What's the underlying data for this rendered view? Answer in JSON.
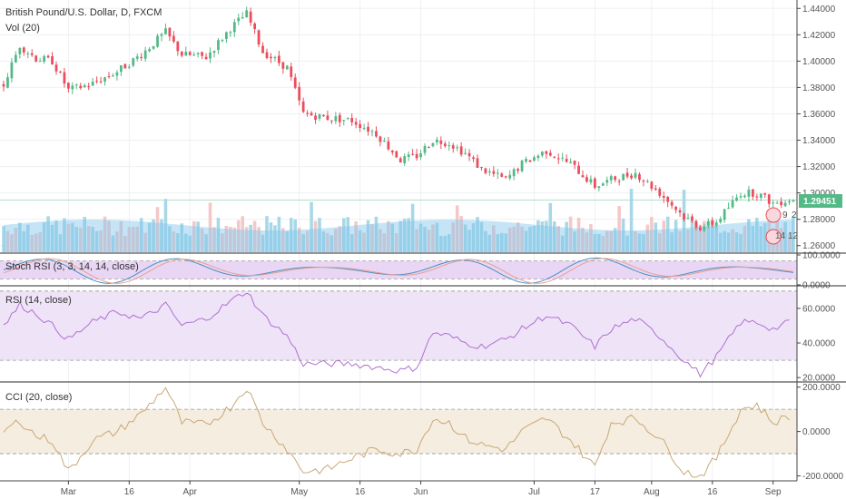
{
  "title": "British Pound/U.S. Dollar, D, FXCM",
  "volume_label": "Vol (20)",
  "current_price_label": "1.29451",
  "event_badges": [
    "9",
    "2",
    "14",
    "12"
  ],
  "colors": {
    "up": "#53b987",
    "down": "#eb4d5c",
    "volume_up": "#a8d8e8",
    "volume_down": "#f4c8c8",
    "volume_ma": "#7ec6ec",
    "stoch_k": "#4a90c2",
    "stoch_d": "#e8a090",
    "rsi": "#b070d0",
    "cci": "#c9a878",
    "band_stoch": "#e8d6f4",
    "band_rsi": "#efe3f8",
    "band_cci": "#f5ede0"
  },
  "chart_data": [
    {
      "type": "candlestick",
      "title": "British Pound/U.S. Dollar, D, FXCM",
      "y_ticks": [
        "1.44000",
        "1.42000",
        "1.40000",
        "1.38000",
        "1.36000",
        "1.34000",
        "1.32000",
        "1.30000",
        "1.28000",
        "1.26000"
      ],
      "ylim": [
        1.255,
        1.445
      ],
      "x_labels": [
        {
          "label": "Mar",
          "i": 16
        },
        {
          "label": "16",
          "i": 31
        },
        {
          "label": "Apr",
          "i": 46
        },
        {
          "label": "May",
          "i": 73
        },
        {
          "label": "16",
          "i": 88
        },
        {
          "label": "Jun",
          "i": 103
        },
        {
          "label": "Jul",
          "i": 131
        },
        {
          "label": "17",
          "i": 146
        },
        {
          "label": "Aug",
          "i": 160
        },
        {
          "label": "16",
          "i": 175
        },
        {
          "label": "Sep",
          "i": 190
        }
      ],
      "n": 196,
      "keypoints": [
        [
          0,
          1.382
        ],
        [
          4,
          1.412
        ],
        [
          8,
          1.402
        ],
        [
          12,
          1.4
        ],
        [
          16,
          1.378
        ],
        [
          22,
          1.383
        ],
        [
          28,
          1.392
        ],
        [
          34,
          1.405
        ],
        [
          40,
          1.422
        ],
        [
          44,
          1.405
        ],
        [
          50,
          1.403
        ],
        [
          56,
          1.425
        ],
        [
          60,
          1.436
        ],
        [
          64,
          1.407
        ],
        [
          70,
          1.395
        ],
        [
          74,
          1.36
        ],
        [
          80,
          1.357
        ],
        [
          86,
          1.355
        ],
        [
          92,
          1.345
        ],
        [
          98,
          1.325
        ],
        [
          102,
          1.328
        ],
        [
          106,
          1.34
        ],
        [
          110,
          1.338
        ],
        [
          114,
          1.33
        ],
        [
          118,
          1.318
        ],
        [
          124,
          1.31
        ],
        [
          128,
          1.322
        ],
        [
          134,
          1.332
        ],
        [
          140,
          1.322
        ],
        [
          146,
          1.305
        ],
        [
          150,
          1.31
        ],
        [
          156,
          1.315
        ],
        [
          162,
          1.3
        ],
        [
          168,
          1.282
        ],
        [
          172,
          1.274
        ],
        [
          176,
          1.278
        ],
        [
          182,
          1.3
        ],
        [
          186,
          1.3
        ],
        [
          190,
          1.292
        ],
        [
          194,
          1.295
        ],
        [
          195,
          1.29451
        ]
      ],
      "current_price": 1.29451
    },
    {
      "type": "bar",
      "title": "Vol (20)",
      "series": "volume with moving average"
    },
    {
      "type": "line",
      "title": "Stoch RSI (3, 3, 14, 14, close)",
      "y_ticks": [
        "100.0000",
        "0.0000"
      ],
      "ylim": [
        0,
        100
      ],
      "bands": [
        20,
        80
      ]
    },
    {
      "type": "line",
      "title": "RSI (14, close)",
      "y_ticks": [
        "60.0000",
        "40.0000",
        "20.0000"
      ],
      "ylim": [
        18,
        72
      ],
      "bands": [
        30,
        70
      ],
      "keypoints": [
        [
          0,
          50
        ],
        [
          4,
          62
        ],
        [
          8,
          57
        ],
        [
          12,
          50
        ],
        [
          16,
          42
        ],
        [
          22,
          52
        ],
        [
          28,
          58
        ],
        [
          34,
          54
        ],
        [
          40,
          62
        ],
        [
          44,
          50
        ],
        [
          50,
          54
        ],
        [
          56,
          64
        ],
        [
          60,
          70
        ],
        [
          64,
          56
        ],
        [
          70,
          44
        ],
        [
          74,
          28
        ],
        [
          80,
          28
        ],
        [
          86,
          28
        ],
        [
          92,
          26
        ],
        [
          98,
          24
        ],
        [
          102,
          26
        ],
        [
          106,
          46
        ],
        [
          110,
          44
        ],
        [
          114,
          40
        ],
        [
          118,
          38
        ],
        [
          124,
          42
        ],
        [
          128,
          48
        ],
        [
          134,
          56
        ],
        [
          140,
          50
        ],
        [
          146,
          38
        ],
        [
          150,
          48
        ],
        [
          156,
          54
        ],
        [
          162,
          44
        ],
        [
          168,
          30
        ],
        [
          172,
          22
        ],
        [
          176,
          32
        ],
        [
          182,
          52
        ],
        [
          186,
          52
        ],
        [
          190,
          48
        ],
        [
          194,
          52
        ]
      ]
    },
    {
      "type": "line",
      "title": "CCI (20, close)",
      "y_ticks": [
        "200.0000",
        "0.0000",
        "-200.0000"
      ],
      "ylim": [
        -210,
        215
      ],
      "bands": [
        -100,
        100
      ],
      "keypoints": [
        [
          0,
          0
        ],
        [
          4,
          50
        ],
        [
          8,
          -20
        ],
        [
          12,
          -40
        ],
        [
          16,
          -180
        ],
        [
          22,
          -40
        ],
        [
          28,
          0
        ],
        [
          34,
          80
        ],
        [
          40,
          200
        ],
        [
          44,
          40
        ],
        [
          50,
          30
        ],
        [
          56,
          110
        ],
        [
          60,
          200
        ],
        [
          64,
          40
        ],
        [
          70,
          -80
        ],
        [
          74,
          -180
        ],
        [
          80,
          -170
        ],
        [
          86,
          -120
        ],
        [
          92,
          -80
        ],
        [
          98,
          -100
        ],
        [
          102,
          -80
        ],
        [
          106,
          60
        ],
        [
          110,
          40
        ],
        [
          114,
          -30
        ],
        [
          118,
          -60
        ],
        [
          124,
          -80
        ],
        [
          128,
          0
        ],
        [
          134,
          60
        ],
        [
          140,
          -40
        ],
        [
          146,
          -160
        ],
        [
          150,
          40
        ],
        [
          156,
          60
        ],
        [
          162,
          -30
        ],
        [
          168,
          -180
        ],
        [
          172,
          -200
        ],
        [
          176,
          -120
        ],
        [
          182,
          100
        ],
        [
          186,
          120
        ],
        [
          190,
          40
        ],
        [
          194,
          70
        ]
      ]
    }
  ]
}
